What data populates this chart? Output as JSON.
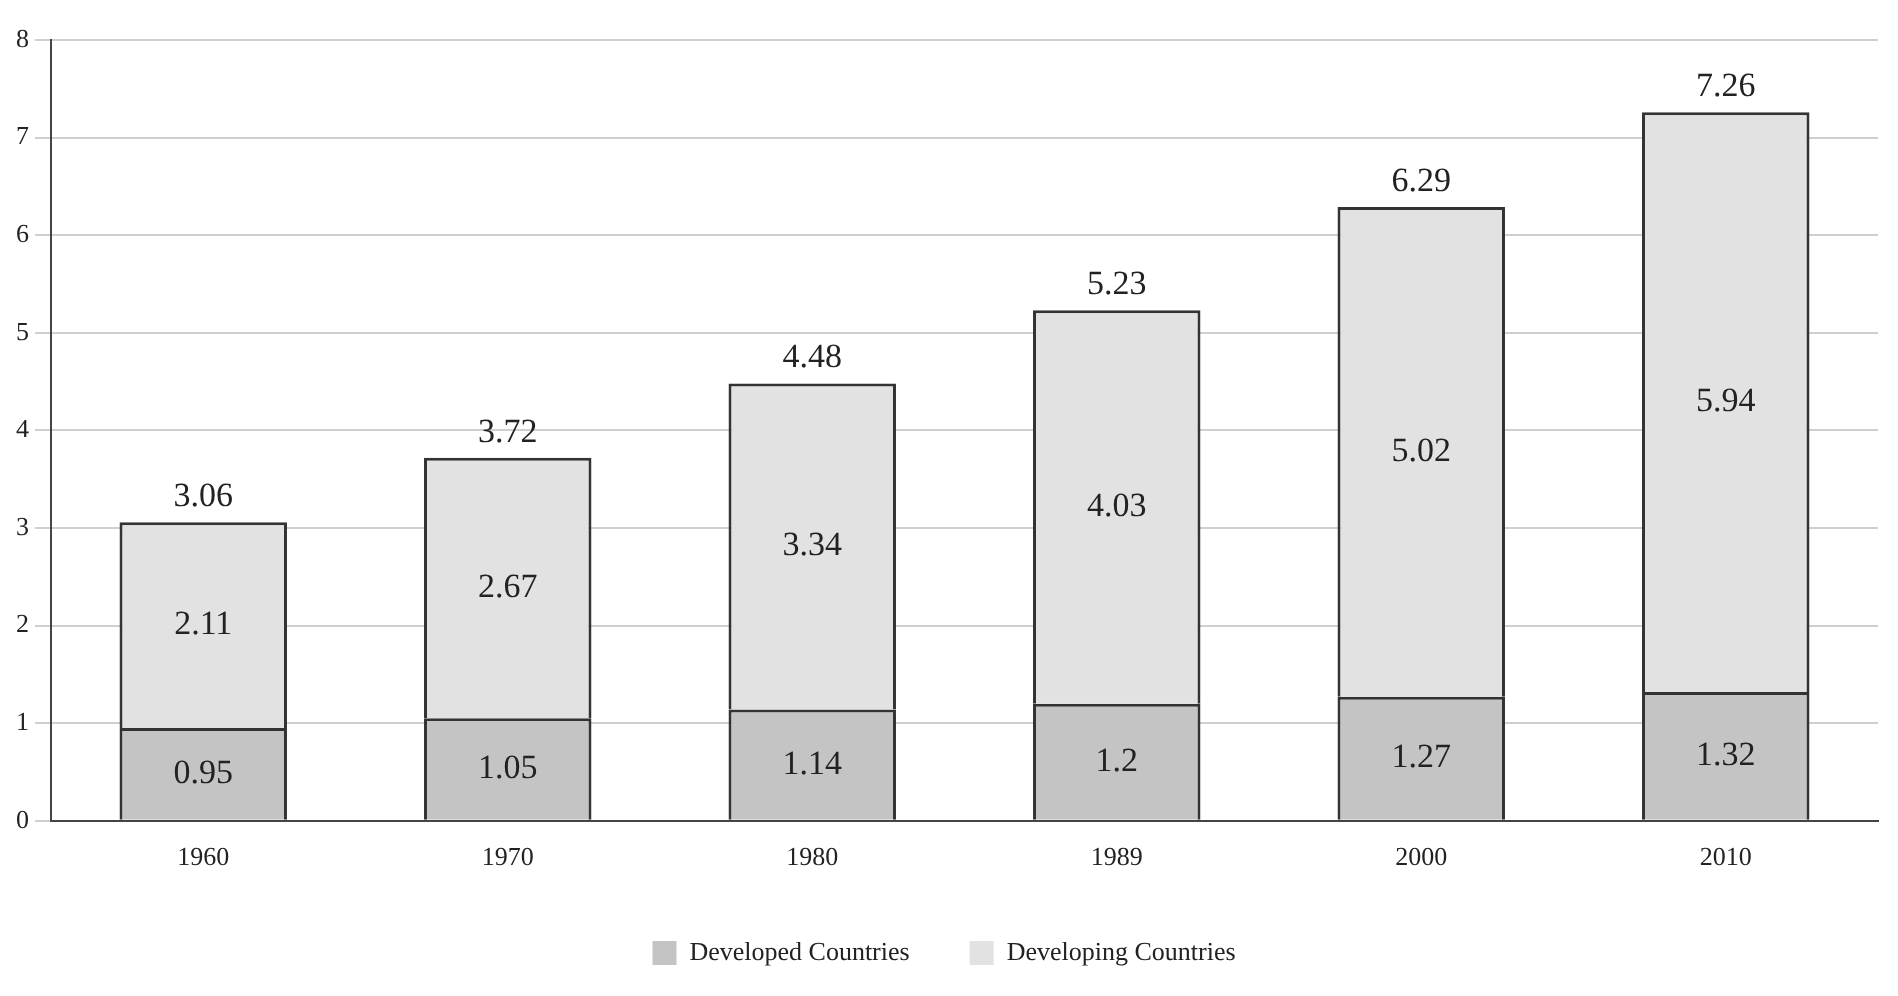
{
  "chart_data": {
    "type": "bar",
    "stacked": true,
    "categories": [
      "1960",
      "1970",
      "1980",
      "1989",
      "2000",
      "2010"
    ],
    "series": [
      {
        "name": "Developed Countries",
        "color": "#c4c4c4",
        "values": [
          0.95,
          1.05,
          1.14,
          1.2,
          1.27,
          1.32
        ]
      },
      {
        "name": "Developing Countries",
        "color": "#e2e2e2",
        "values": [
          2.11,
          2.67,
          3.34,
          4.03,
          5.02,
          5.94
        ]
      }
    ],
    "totals": [
      "3.06",
      "3.72",
      "4.48",
      "5.23",
      "6.29",
      "7.26"
    ],
    "data_labels": true,
    "ylim": [
      0,
      8
    ],
    "yticks": [
      0,
      1,
      2,
      3,
      4,
      5,
      6,
      7,
      8
    ],
    "grid": "y",
    "legend": "bottom"
  }
}
